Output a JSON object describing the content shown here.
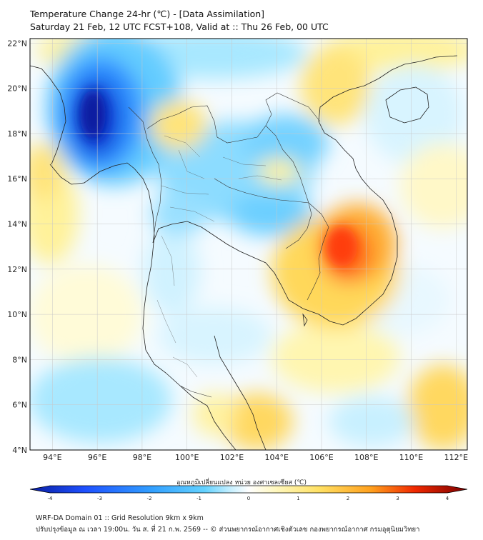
{
  "title_line1": "Temperature Change 24-hr (℃) - [Data Assimilation]",
  "title_line2": "Saturday 21 Feb, 12 UTC FCST+108, Valid at :: Thu 26 Feb, 00 UTC",
  "lat_labels": [
    "22°N",
    "20°N",
    "18°N",
    "16°N",
    "14°N",
    "12°N",
    "10°N",
    "8°N",
    "6°N",
    "4°N"
  ],
  "lat_values": [
    22,
    20,
    18,
    16,
    14,
    12,
    10,
    8,
    6,
    4
  ],
  "lon_labels": [
    "94°E",
    "96°E",
    "98°E",
    "100°E",
    "102°E",
    "104°E",
    "106°E",
    "108°E",
    "110°E",
    "112°E"
  ],
  "lon_values": [
    94,
    96,
    98,
    100,
    102,
    104,
    106,
    108,
    110,
    112
  ],
  "colorbar_title": "อุณหภูมิเปลี่ยนแปลง หน่วย องศาเซลเซียส (℃)",
  "colorbar_ticks": [
    "-4",
    "-3",
    "-2",
    "-1",
    "0",
    "1",
    "2",
    "3",
    "4"
  ],
  "colorbar_tick_values": [
    -4,
    -3,
    -2,
    -1,
    0,
    1,
    2,
    3,
    4
  ],
  "footer_line1": "WRF-DA Domain 01 :: Grid Resolution 9km x 9km",
  "footer_line2": "ปรับปรุงข้อมูล ณ เวลา 19:00น. วัน ส. ที่ 21 ก.พ. 2569 -- © ส่วนพยากรณ์อากาศเชิงตัวเลข กองพยากรณ์อากาศ กรมอุตุนิยมวิทยา",
  "colors": {
    "cold_extreme": "#0a1ea0",
    "cold_strong": "#1e64ff",
    "cold_mid": "#3cb4ff",
    "cold_light": "#a0e6ff",
    "neutral": "#f5fbff",
    "warm_light": "#fff6a0",
    "warm_mid": "#ffd23c",
    "warm_strong": "#ff5a14",
    "warm_extreme": "#7a0000"
  }
}
